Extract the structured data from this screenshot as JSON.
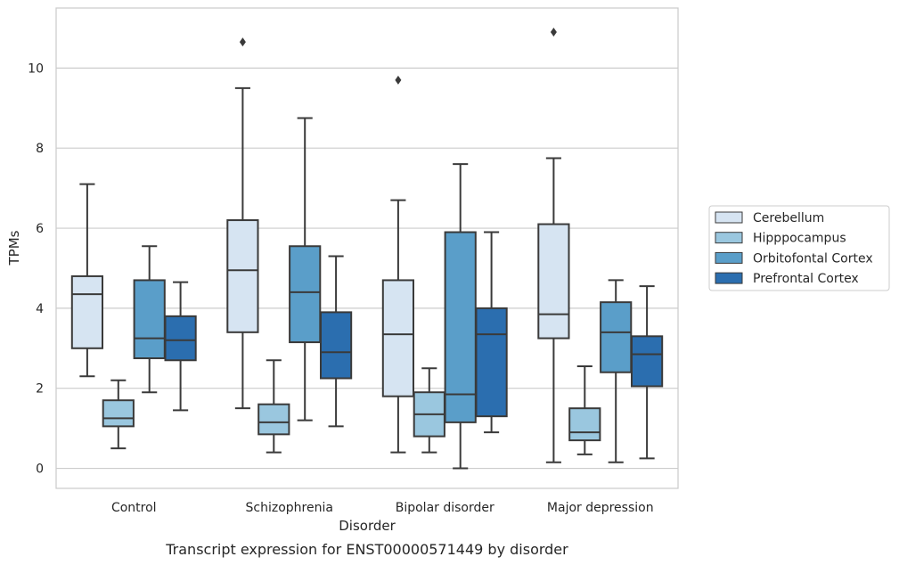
{
  "caption": "Transcript expression for ENST00000571449 by disorder",
  "chart_data": {
    "type": "box",
    "title": "",
    "xlabel": "Disorder",
    "ylabel": "TPMs",
    "ylim": [
      -0.5,
      11.5
    ],
    "yticks": [
      0,
      2,
      4,
      6,
      8,
      10
    ],
    "grid": "horizontal",
    "legend_position": "right",
    "categories": [
      "Control",
      "Schizophrenia",
      "Bipolar disorder",
      "Major depression"
    ],
    "series": [
      {
        "name": "Cerebellum",
        "color": "#d6e4f2",
        "boxes": [
          {
            "whisker_low": 2.3,
            "q1": 3.0,
            "median": 4.35,
            "q3": 4.8,
            "whisker_high": 7.1,
            "outliers": []
          },
          {
            "whisker_low": 1.5,
            "q1": 3.4,
            "median": 4.95,
            "q3": 6.2,
            "whisker_high": 9.5,
            "outliers": [
              10.65
            ]
          },
          {
            "whisker_low": 0.4,
            "q1": 1.8,
            "median": 3.35,
            "q3": 4.7,
            "whisker_high": 6.7,
            "outliers": [
              9.7
            ]
          },
          {
            "whisker_low": 0.15,
            "q1": 3.25,
            "median": 3.85,
            "q3": 6.1,
            "whisker_high": 7.75,
            "outliers": [
              10.9
            ]
          }
        ]
      },
      {
        "name": "Hipppocampus",
        "color": "#9ac7df",
        "boxes": [
          {
            "whisker_low": 0.5,
            "q1": 1.05,
            "median": 1.25,
            "q3": 1.7,
            "whisker_high": 2.2,
            "outliers": []
          },
          {
            "whisker_low": 0.4,
            "q1": 0.85,
            "median": 1.15,
            "q3": 1.6,
            "whisker_high": 2.7,
            "outliers": []
          },
          {
            "whisker_low": 0.4,
            "q1": 0.8,
            "median": 1.35,
            "q3": 1.9,
            "whisker_high": 2.5,
            "outliers": []
          },
          {
            "whisker_low": 0.35,
            "q1": 0.7,
            "median": 0.9,
            "q3": 1.5,
            "whisker_high": 2.55,
            "outliers": []
          }
        ]
      },
      {
        "name": "Orbitofontal Cortex",
        "color": "#5a9ec9",
        "boxes": [
          {
            "whisker_low": 1.9,
            "q1": 2.75,
            "median": 3.25,
            "q3": 4.7,
            "whisker_high": 5.55,
            "outliers": []
          },
          {
            "whisker_low": 1.2,
            "q1": 3.15,
            "median": 4.4,
            "q3": 5.55,
            "whisker_high": 8.75,
            "outliers": []
          },
          {
            "whisker_low": 0.0,
            "q1": 1.15,
            "median": 1.85,
            "q3": 5.9,
            "whisker_high": 7.6,
            "outliers": []
          },
          {
            "whisker_low": 0.15,
            "q1": 2.4,
            "median": 3.4,
            "q3": 4.15,
            "whisker_high": 4.7,
            "outliers": []
          }
        ]
      },
      {
        "name": "Prefrontal Cortex",
        "color": "#2b6eaf",
        "boxes": [
          {
            "whisker_low": 1.45,
            "q1": 2.7,
            "median": 3.2,
            "q3": 3.8,
            "whisker_high": 4.65,
            "outliers": []
          },
          {
            "whisker_low": 1.05,
            "q1": 2.25,
            "median": 2.9,
            "q3": 3.9,
            "whisker_high": 5.3,
            "outliers": []
          },
          {
            "whisker_low": 0.9,
            "q1": 1.3,
            "median": 3.35,
            "q3": 4.0,
            "whisker_high": 5.9,
            "outliers": []
          },
          {
            "whisker_low": 0.25,
            "q1": 2.05,
            "median": 2.85,
            "q3": 3.3,
            "whisker_high": 4.55,
            "outliers": []
          }
        ]
      }
    ]
  }
}
